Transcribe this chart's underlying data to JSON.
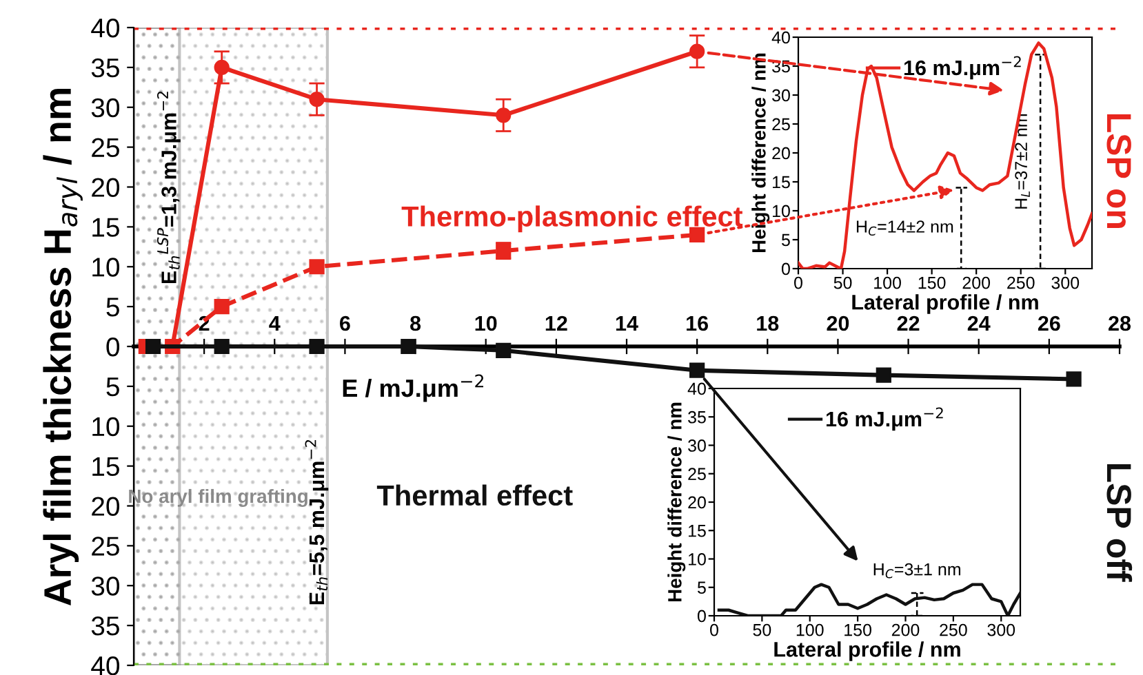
{
  "chart_data": [
    {
      "type": "line",
      "ylabel": "Aryl film thickness H$_{aryl}$ / nm",
      "xlabel": "E / mJ.μm$^{−2}$",
      "xlim": [
        0,
        28
      ],
      "xticks": [
        2,
        4,
        6,
        8,
        10,
        12,
        14,
        16,
        18,
        20,
        22,
        24,
        26,
        28
      ],
      "ylim": [
        -40,
        40
      ],
      "yticks": [
        {
          "value": -40,
          "label": "40"
        },
        {
          "value": -35,
          "label": "35"
        },
        {
          "value": -30,
          "label": "30"
        },
        {
          "value": -25,
          "label": "25"
        },
        {
          "value": -20,
          "label": "20"
        },
        {
          "value": -15,
          "label": "15"
        },
        {
          "value": -10,
          "label": "10"
        },
        {
          "value": -5,
          "label": "5"
        },
        0,
        5,
        10,
        15,
        20,
        25,
        30,
        35,
        40
      ],
      "series": [
        {
          "color": "#e8261e",
          "marker": "circle",
          "line_style": "solid",
          "x": [
            0.35,
            1.1,
            2.5,
            5.2,
            10.5,
            16
          ],
          "values": [
            0,
            0,
            35,
            31,
            29,
            37
          ],
          "errors": [
            null,
            null,
            2,
            2,
            2,
            2
          ]
        },
        {
          "color": "#e8261e",
          "marker": "square",
          "line_style": "dashed",
          "x": [
            0.35,
            1.1,
            2.5,
            5.2,
            10.5,
            16
          ],
          "values": [
            0,
            0,
            5,
            10,
            12,
            14
          ],
          "errors": [
            null,
            null,
            null,
            null,
            1,
            null
          ]
        },
        {
          "color": "#111111",
          "marker": "square",
          "line_style": "solid",
          "x": [
            0.55,
            2.5,
            5.2,
            7.8,
            10.5,
            16,
            21.3,
            26.7
          ],
          "values": [
            0,
            0,
            0,
            0,
            -0.5,
            -3,
            -3.6,
            -4.1
          ]
        }
      ],
      "bands": [
        {
          "axis": "x",
          "from": 0,
          "to": 1.3,
          "label": "E$_{th}$$^{LSP}$=1,3 mJ.μm$^{−2}$",
          "color": "#8a8a8a"
        },
        {
          "axis": "x",
          "from": 0,
          "to": 5.5,
          "label": "E$_{th}$=5,5 mJ.μm$^{−2}$",
          "color": "#8a8a8a"
        }
      ],
      "ref_lines": [
        {
          "axis": "y",
          "value": 40,
          "color": "#e8261e",
          "line_style": "dotted"
        },
        {
          "axis": "y",
          "value": -40,
          "color": "#7bc043",
          "line_style": "dotted"
        }
      ],
      "annotations": [
        "Thermo-plasmonic effect",
        "Thermal effect",
        "No aryl film grafting",
        "LSP on",
        "LSP off"
      ],
      "grid": false,
      "legend": false
    },
    {
      "type": "line",
      "xlabel": "Lateral profile / nm",
      "ylabel": "Height difference / nm",
      "xlim": [
        0,
        330
      ],
      "xticks": [
        0,
        50,
        100,
        150,
        200,
        250,
        300
      ],
      "ylim": [
        0,
        40
      ],
      "yticks": [
        0,
        5,
        10,
        15,
        20,
        25,
        30,
        35,
        40
      ],
      "series": [
        {
          "name": "16 mJ.μm$^{−2}$",
          "color": "#e8261e",
          "x": [
            0,
            5,
            10,
            20,
            30,
            35,
            45,
            48,
            52,
            58,
            65,
            72,
            78,
            82,
            88,
            95,
            105,
            115,
            123,
            130,
            140,
            148,
            155,
            160,
            168,
            175,
            182,
            190,
            200,
            207,
            215,
            225,
            235,
            245,
            255,
            262,
            270,
            276,
            285,
            290,
            298,
            305,
            310,
            318,
            325,
            330
          ],
          "values": [
            1,
            0,
            0,
            0.5,
            0.3,
            1,
            0.2,
            0,
            3,
            12,
            22,
            30,
            34.5,
            35,
            33,
            28,
            21,
            17,
            14.5,
            13.5,
            15,
            16,
            16.5,
            18,
            20,
            19.5,
            16.5,
            15.5,
            14,
            13.5,
            14.5,
            14.8,
            16,
            24,
            32,
            37,
            39,
            38,
            33,
            28,
            14,
            7,
            4,
            5,
            7.5,
            9.5
          ]
        }
      ],
      "annotations": [
        "H$_{C}$=14±2 nm",
        "H$_{L}$=37±2 nm"
      ],
      "legend": "top",
      "grid": false
    },
    {
      "type": "line",
      "xlabel": "Lateral profile / nm",
      "ylabel": "Height difference / nm",
      "xlim": [
        0,
        320
      ],
      "xticks": [
        0,
        50,
        100,
        150,
        200,
        250,
        300
      ],
      "ylim": [
        0,
        40
      ],
      "yticks": [
        0,
        5,
        10,
        15,
        20,
        25,
        30,
        35,
        40
      ],
      "series": [
        {
          "name": "16 mJ.μm$^{−2}$",
          "color": "#111111",
          "x": [
            5,
            15,
            25,
            35,
            45,
            70,
            75,
            85,
            95,
            105,
            112,
            120,
            130,
            140,
            150,
            160,
            170,
            180,
            190,
            200,
            210,
            220,
            230,
            240,
            250,
            260,
            270,
            280,
            290,
            300,
            307,
            313,
            320
          ],
          "values": [
            1,
            1,
            0.5,
            0,
            0,
            0,
            1,
            1,
            3,
            5,
            5.5,
            5,
            2,
            2,
            1.3,
            2,
            3,
            3.7,
            3,
            2,
            3,
            3.2,
            2.8,
            3,
            4,
            4.5,
            5.5,
            5.5,
            3,
            2.5,
            0,
            2,
            4
          ]
        }
      ],
      "annotations": [
        {
          "text": "H$_{C}$=3±1 nm",
          "x": 212,
          "y": 4
        }
      ],
      "legend": "top",
      "grid": false
    }
  ]
}
